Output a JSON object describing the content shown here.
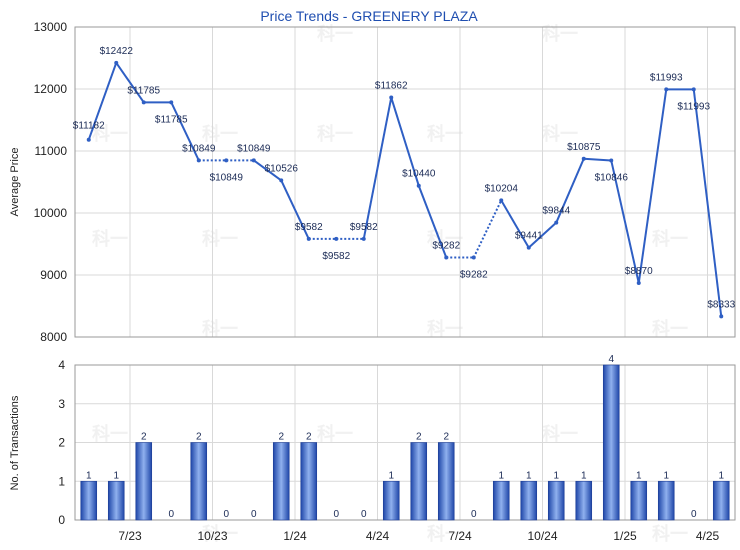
{
  "chart_data": [
    {
      "type": "line",
      "title": "Price Trends - GREENERY PLAZA",
      "ylabel": "Average Price",
      "ylim": [
        8000,
        13000
      ],
      "yticks": [
        8000,
        9000,
        10000,
        11000,
        12000,
        13000
      ],
      "grid": true,
      "series": [
        {
          "values": [
            11182,
            12422,
            11785,
            11785,
            10849,
            10849,
            10849,
            10526,
            9582,
            9582,
            9582,
            11862,
            10440,
            9282,
            9282,
            10204,
            9441,
            9844,
            10875,
            10846,
            8870,
            11993,
            11993,
            8333
          ],
          "color": "#2f5fc4"
        }
      ],
      "labels": [
        "$11182",
        "$12422",
        "$11785",
        "$11785",
        "$10849",
        "$10849",
        "$10849",
        "$10526",
        "$9582",
        "$9582",
        "$9582",
        "$11862",
        "$10440",
        "$9282",
        "$9282",
        "$10204",
        "$9441",
        "$9844",
        "$10875",
        "$10846",
        "$8870",
        "$11993",
        "$11993",
        "$8333"
      ],
      "interpolated": [
        false,
        false,
        false,
        false,
        false,
        true,
        false,
        false,
        false,
        true,
        false,
        false,
        false,
        false,
        true,
        false,
        false,
        false,
        false,
        false,
        false,
        false,
        false,
        false
      ]
    },
    {
      "type": "bar",
      "ylabel": "No. of Transactions",
      "ylim": [
        0,
        4
      ],
      "yticks": [
        0,
        1,
        2,
        3,
        4
      ],
      "grid": true,
      "values": [
        1,
        1,
        2,
        0,
        2,
        0,
        0,
        2,
        2,
        0,
        0,
        1,
        2,
        2,
        0,
        1,
        1,
        1,
        1,
        4,
        1,
        1,
        0,
        1
      ],
      "x_tick_labels": [
        "7/23",
        "10/23",
        "1/24",
        "4/24",
        "7/24",
        "10/24",
        "1/25",
        "4/25"
      ],
      "color": "#3a6ad0"
    }
  ],
  "watermark": "科一"
}
